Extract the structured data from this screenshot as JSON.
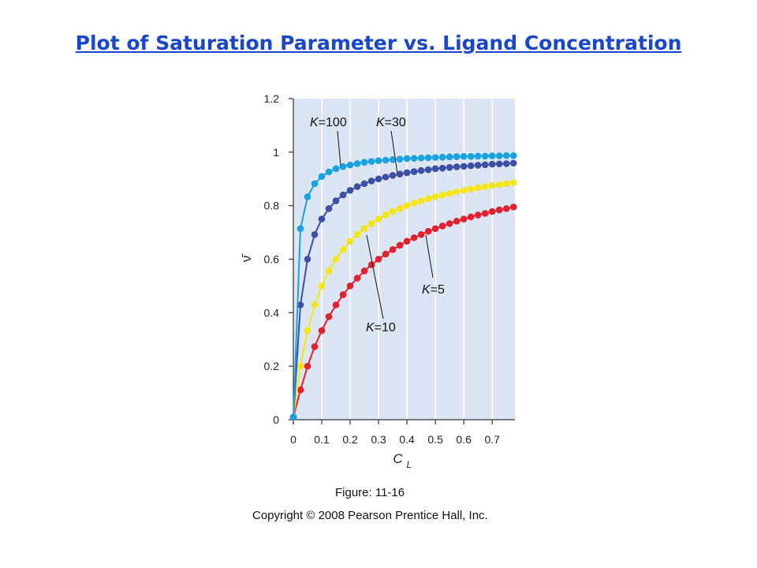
{
  "slide": {
    "title": "Plot of Saturation Parameter vs. Ligand Concentration",
    "caption": "Figure: 11-16",
    "copyright": "Copyright © 2008 Pearson Prentice Hall, Inc."
  },
  "chart_data": {
    "type": "line",
    "xlabel": "C",
    "xlabel_sub": "L",
    "ylabel": "ν̄",
    "xlim": [
      0,
      0.78
    ],
    "ylim": [
      0,
      1.2
    ],
    "xticks": [
      "0",
      "0.1",
      "0.2",
      "0.3",
      "0.4",
      "0.5",
      "0.6",
      "0.7"
    ],
    "xtick_values": [
      0,
      0.1,
      0.2,
      0.3,
      0.4,
      0.5,
      0.6,
      0.7
    ],
    "yticks": [
      "0",
      "0.2",
      "0.4",
      "0.6",
      "0.8",
      "1",
      "1.2"
    ],
    "ytick_values": [
      0,
      0.2,
      0.4,
      0.6,
      0.8,
      1.0,
      1.2
    ],
    "grid": "vertical",
    "background": "#dce5f4",
    "x": [
      0,
      0.025,
      0.05,
      0.075,
      0.1,
      0.125,
      0.15,
      0.175,
      0.2,
      0.225,
      0.25,
      0.275,
      0.3,
      0.325,
      0.35,
      0.375,
      0.4,
      0.425,
      0.45,
      0.475,
      0.5,
      0.525,
      0.55,
      0.575,
      0.6,
      0.625,
      0.65,
      0.675,
      0.7,
      0.725,
      0.75,
      0.775
    ],
    "series": [
      {
        "annotation": "K=100",
        "K": 100,
        "color": "#18a3e0",
        "values": [
          0.01,
          0.714,
          0.833,
          0.882,
          0.909,
          0.926,
          0.938,
          0.946,
          0.952,
          0.957,
          0.962,
          0.965,
          0.968,
          0.97,
          0.972,
          0.974,
          0.976,
          0.977,
          0.978,
          0.979,
          0.98,
          0.981,
          0.982,
          0.983,
          0.984,
          0.984,
          0.985,
          0.985,
          0.986,
          0.986,
          0.987,
          0.987
        ]
      },
      {
        "annotation": "K=30",
        "K": 30,
        "color": "#3c4fa2",
        "values": [
          0.01,
          0.429,
          0.6,
          0.692,
          0.75,
          0.789,
          0.818,
          0.84,
          0.857,
          0.871,
          0.882,
          0.892,
          0.9,
          0.907,
          0.913,
          0.918,
          0.923,
          0.927,
          0.931,
          0.934,
          0.938,
          0.94,
          0.943,
          0.945,
          0.947,
          0.949,
          0.951,
          0.953,
          0.955,
          0.956,
          0.957,
          0.959
        ]
      },
      {
        "annotation": "K=10",
        "K": 10,
        "color": "#f5e614",
        "values": [
          0.01,
          0.2,
          0.333,
          0.429,
          0.5,
          0.556,
          0.6,
          0.636,
          0.667,
          0.692,
          0.714,
          0.733,
          0.75,
          0.765,
          0.778,
          0.789,
          0.8,
          0.81,
          0.818,
          0.826,
          0.833,
          0.84,
          0.846,
          0.852,
          0.857,
          0.862,
          0.867,
          0.871,
          0.875,
          0.879,
          0.882,
          0.886
        ]
      },
      {
        "annotation": "K=5",
        "K": 5,
        "color": "#e3202e",
        "values": [
          0.01,
          0.111,
          0.2,
          0.273,
          0.333,
          0.385,
          0.429,
          0.467,
          0.5,
          0.529,
          0.556,
          0.579,
          0.6,
          0.619,
          0.636,
          0.652,
          0.667,
          0.68,
          0.692,
          0.704,
          0.714,
          0.724,
          0.733,
          0.742,
          0.75,
          0.758,
          0.765,
          0.771,
          0.778,
          0.784,
          0.789,
          0.795
        ]
      }
    ],
    "annotations": [
      {
        "k": "K",
        "eq": "=",
        "num": "100"
      },
      {
        "k": "K",
        "eq": "=",
        "num": "30"
      },
      {
        "k": "K",
        "eq": "=",
        "num": "10"
      },
      {
        "k": "K",
        "eq": "=",
        "num": "5"
      }
    ]
  }
}
